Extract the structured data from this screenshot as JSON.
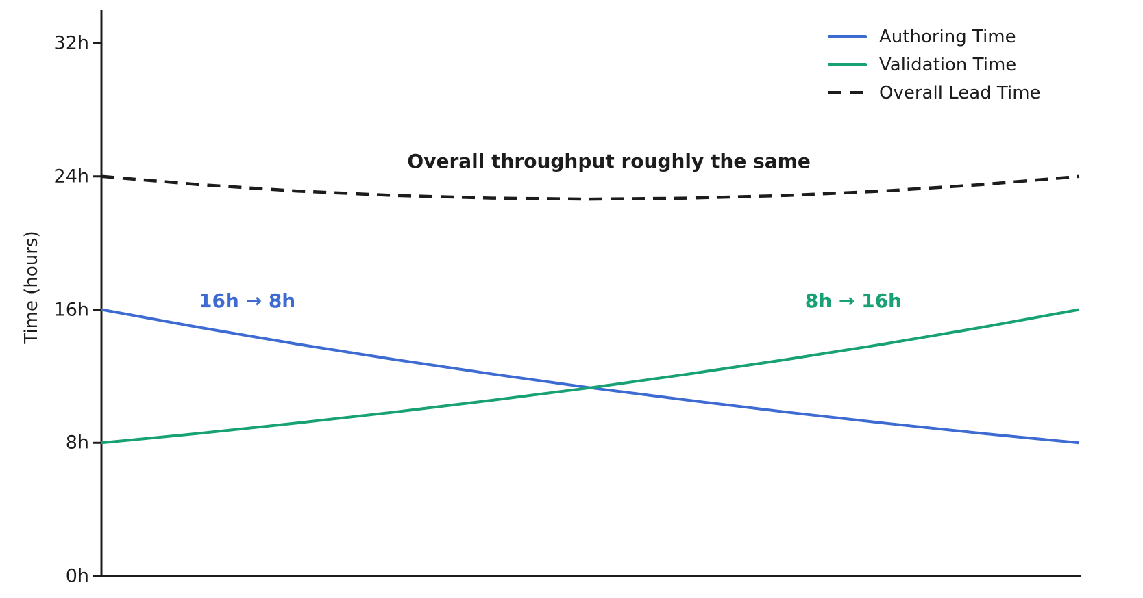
{
  "figure": {
    "background_color": "#ffffff",
    "axis_color": "#1c1c1c",
    "text_color": "#1c1c1c"
  },
  "chart_data": {
    "type": "line",
    "title": "",
    "xlabel": "",
    "ylabel": "Time (hours)",
    "ylim": [
      0,
      34
    ],
    "grid": false,
    "x_axis_ticks_visible": false,
    "yticks": {
      "values": [
        0,
        8,
        16,
        24,
        32
      ],
      "labels": [
        "0h",
        "8h",
        "16h",
        "24h",
        "32h"
      ]
    },
    "x": [
      0,
      0.1,
      0.2,
      0.3,
      0.4,
      0.5,
      0.6,
      0.7,
      0.8,
      0.9,
      1
    ],
    "series": [
      {
        "name": "Authoring Time",
        "color": "#3d6bd2",
        "style": "solid",
        "start_label": "16h",
        "end_label": "8h",
        "values": [
          16,
          14.93,
          13.93,
          13.0,
          12.13,
          11.31,
          10.56,
          9.85,
          9.19,
          8.57,
          8
        ]
      },
      {
        "name": "Validation Time",
        "color": "#17a175",
        "style": "solid",
        "start_label": "8h",
        "end_label": "16h",
        "values": [
          8,
          8.57,
          9.19,
          9.85,
          10.56,
          11.31,
          12.13,
          13.0,
          13.93,
          14.93,
          16
        ]
      },
      {
        "name": "Overall Lead Time",
        "color": "#1c1c1c",
        "style": "dashed",
        "start_label": "24h",
        "end_label": "24h",
        "values": [
          24,
          23.5,
          23.12,
          22.85,
          22.69,
          22.63,
          22.69,
          22.85,
          23.12,
          23.5,
          24
        ]
      }
    ],
    "legend_position": "upper right",
    "annotations": [
      {
        "text": "Overall throughput roughly the same",
        "color": "#1c1c1c",
        "x": 0.519,
        "y": 24.9
      },
      {
        "text": "16h → 8h",
        "color": "#3d6bd2",
        "x": 0.149,
        "y": 16.5
      },
      {
        "text": "8h → 16h",
        "color": "#17a175",
        "x": 0.769,
        "y": 16.5
      }
    ]
  }
}
